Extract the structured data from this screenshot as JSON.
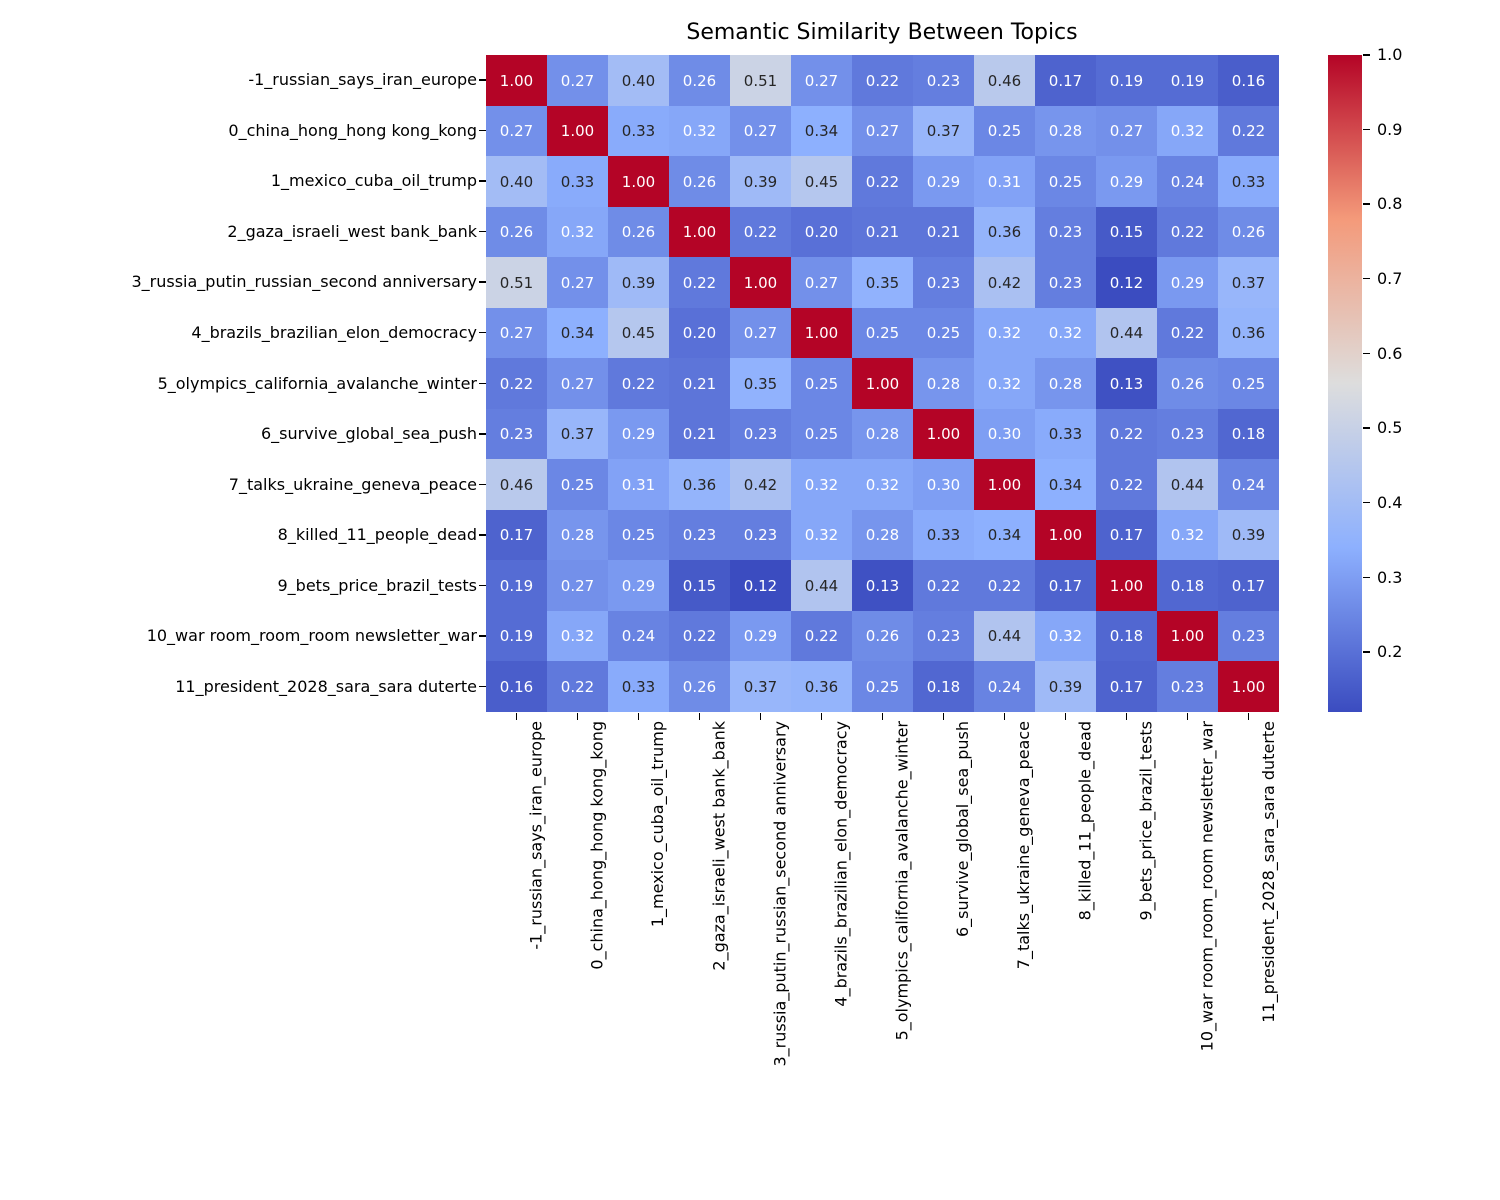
{
  "chart_data": {
    "type": "heatmap",
    "title": "Semantic Similarity Between Topics",
    "labels": [
      "-1_russian_says_iran_europe",
      "0_china_hong_hong kong_kong",
      "1_mexico_cuba_oil_trump",
      "2_gaza_israeli_west bank_bank",
      "3_russia_putin_russian_second anniversary",
      "4_brazils_brazilian_elon_democracy",
      "5_olympics_california_avalanche_winter",
      "6_survive_global_sea_push",
      "7_talks_ukraine_geneva_peace",
      "8_killed_11_people_dead",
      "9_bets_price_brazil_tests",
      "10_war room_room_room newsletter_war",
      "11_president_2028_sara_sara duterte"
    ],
    "matrix": [
      [
        1.0,
        0.27,
        0.4,
        0.26,
        0.51,
        0.27,
        0.22,
        0.23,
        0.46,
        0.17,
        0.19,
        0.19,
        0.16
      ],
      [
        0.27,
        1.0,
        0.33,
        0.32,
        0.27,
        0.34,
        0.27,
        0.37,
        0.25,
        0.28,
        0.27,
        0.32,
        0.22
      ],
      [
        0.4,
        0.33,
        1.0,
        0.26,
        0.39,
        0.45,
        0.22,
        0.29,
        0.31,
        0.25,
        0.29,
        0.24,
        0.33
      ],
      [
        0.26,
        0.32,
        0.26,
        1.0,
        0.22,
        0.2,
        0.21,
        0.21,
        0.36,
        0.23,
        0.15,
        0.22,
        0.26
      ],
      [
        0.51,
        0.27,
        0.39,
        0.22,
        1.0,
        0.27,
        0.35,
        0.23,
        0.42,
        0.23,
        0.12,
        0.29,
        0.37
      ],
      [
        0.27,
        0.34,
        0.45,
        0.2,
        0.27,
        1.0,
        0.25,
        0.25,
        0.32,
        0.32,
        0.44,
        0.22,
        0.36
      ],
      [
        0.22,
        0.27,
        0.22,
        0.21,
        0.35,
        0.25,
        1.0,
        0.28,
        0.32,
        0.28,
        0.13,
        0.26,
        0.25
      ],
      [
        0.23,
        0.37,
        0.29,
        0.21,
        0.23,
        0.25,
        0.28,
        1.0,
        0.3,
        0.33,
        0.22,
        0.23,
        0.18
      ],
      [
        0.46,
        0.25,
        0.31,
        0.36,
        0.42,
        0.32,
        0.32,
        0.3,
        1.0,
        0.34,
        0.22,
        0.44,
        0.24
      ],
      [
        0.17,
        0.28,
        0.25,
        0.23,
        0.23,
        0.32,
        0.28,
        0.33,
        0.34,
        1.0,
        0.17,
        0.32,
        0.39
      ],
      [
        0.19,
        0.27,
        0.29,
        0.15,
        0.12,
        0.44,
        0.13,
        0.22,
        0.22,
        0.17,
        1.0,
        0.18,
        0.17
      ],
      [
        0.19,
        0.32,
        0.24,
        0.22,
        0.29,
        0.22,
        0.26,
        0.23,
        0.44,
        0.32,
        0.18,
        1.0,
        0.23
      ],
      [
        0.16,
        0.22,
        0.33,
        0.26,
        0.37,
        0.36,
        0.25,
        0.18,
        0.24,
        0.39,
        0.17,
        0.23,
        1.0
      ]
    ],
    "value_decimals": 2,
    "vmin": 0.12,
    "vmax": 1.0,
    "legend_position": "right-colorbar",
    "grid": false,
    "colorbar_tick_labels": [
      "1.0",
      "0.9",
      "0.8",
      "0.7",
      "0.6",
      "0.5",
      "0.4",
      "0.3",
      "0.2"
    ],
    "colorbar_tick_values": [
      1.0,
      0.9,
      0.8,
      0.7,
      0.6,
      0.5,
      0.4,
      0.3,
      0.2
    ],
    "colormap": {
      "name": "coolwarm",
      "anchors": [
        {
          "t": 0.0,
          "color": "#3B4CC0"
        },
        {
          "t": 0.25,
          "color": "#8DB0FE"
        },
        {
          "t": 0.5,
          "color": "#DDDDDD"
        },
        {
          "t": 0.75,
          "color": "#F49A7A"
        },
        {
          "t": 1.0,
          "color": "#B40426"
        }
      ]
    },
    "annotation_text_colors": {
      "on_dark": "#FFFFFF",
      "on_light": "#262626"
    },
    "axis_text_color": "#000000",
    "background_color": "#FFFFFF"
  }
}
